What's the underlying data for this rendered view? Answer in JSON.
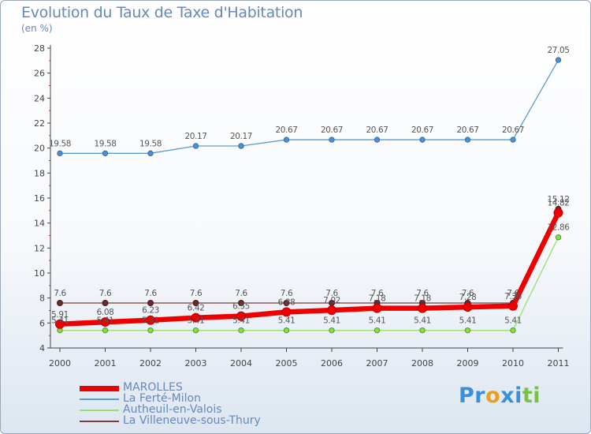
{
  "title": "Evolution du Taux de Taxe d'Habitation",
  "subtitle": "(en %)",
  "logo": {
    "letters": [
      {
        "ch": "P",
        "color": "#3a8fd8"
      },
      {
        "ch": "r",
        "color": "#3a8fd8"
      },
      {
        "ch": "o",
        "color": "#e8a020"
      },
      {
        "ch": "x",
        "color": "#3a8fd8"
      },
      {
        "ch": "i",
        "color": "#3a8fd8"
      },
      {
        "ch": "t",
        "color": "#7ac043"
      },
      {
        "ch": "i",
        "color": "#7ac043"
      }
    ]
  },
  "chart_data": {
    "type": "line",
    "title": "Evolution du Taux de Taxe d'Habitation",
    "subtitle": "(en %)",
    "xlabel": "",
    "ylabel": "",
    "ylim": [
      4,
      28
    ],
    "yticks": [
      4,
      6,
      8,
      10,
      12,
      14,
      16,
      18,
      20,
      22,
      24,
      26,
      28
    ],
    "grid": false,
    "legend_position": "bottom-left",
    "categories": [
      "2000",
      "2001",
      "2002",
      "2003",
      "2004",
      "2005",
      "2006",
      "2007",
      "2008",
      "2009",
      "2010",
      "2011"
    ],
    "series": [
      {
        "name": "MAROLLES",
        "color": "#ee0000",
        "values": [
          5.91,
          6.08,
          6.23,
          6.42,
          6.55,
          6.88,
          7.02,
          7.18,
          7.18,
          7.28,
          7.36,
          14.82
        ],
        "labels": [
          "5.91",
          "6.08",
          "6.23",
          "6.42",
          "6.55",
          "6.88",
          "7.02",
          "7.18",
          "7.18",
          "7.28",
          "7.36",
          "14.82"
        ]
      },
      {
        "name": "La Ferté-Milon",
        "color": "#5b9bd5",
        "values": [
          19.58,
          19.58,
          19.58,
          20.17,
          20.17,
          20.67,
          20.67,
          20.67,
          20.67,
          20.67,
          20.67,
          27.05
        ],
        "labels": [
          "19.58",
          "19.58",
          "19.58",
          "20.17",
          "20.17",
          "20.67",
          "20.67",
          "20.67",
          "20.67",
          "20.67",
          "20.67",
          "27.05"
        ]
      },
      {
        "name": "Autheuil-en-Valois",
        "color": "#99dd77",
        "values": [
          5.41,
          5.41,
          5.41,
          5.41,
          5.41,
          5.41,
          5.41,
          5.41,
          5.41,
          5.41,
          5.41,
          12.86
        ],
        "labels": [
          "5.41",
          "5.41",
          "5.41",
          "5.41",
          "5.41",
          "5.41",
          "5.41",
          "5.41",
          "5.41",
          "5.41",
          "5.41",
          "12.86"
        ]
      },
      {
        "name": "La Villeneuve-sous-Thury",
        "color": "#7a3b3b",
        "values": [
          7.6,
          7.6,
          7.6,
          7.6,
          7.6,
          7.6,
          7.6,
          7.6,
          7.6,
          7.6,
          7.6,
          15.12
        ],
        "labels": [
          "7.6",
          "7.6",
          "7.6",
          "7.6",
          "7.6",
          "7.6",
          "7.6",
          "7.6",
          "7.6",
          "7.6",
          "7.6",
          "15.12"
        ]
      }
    ]
  }
}
